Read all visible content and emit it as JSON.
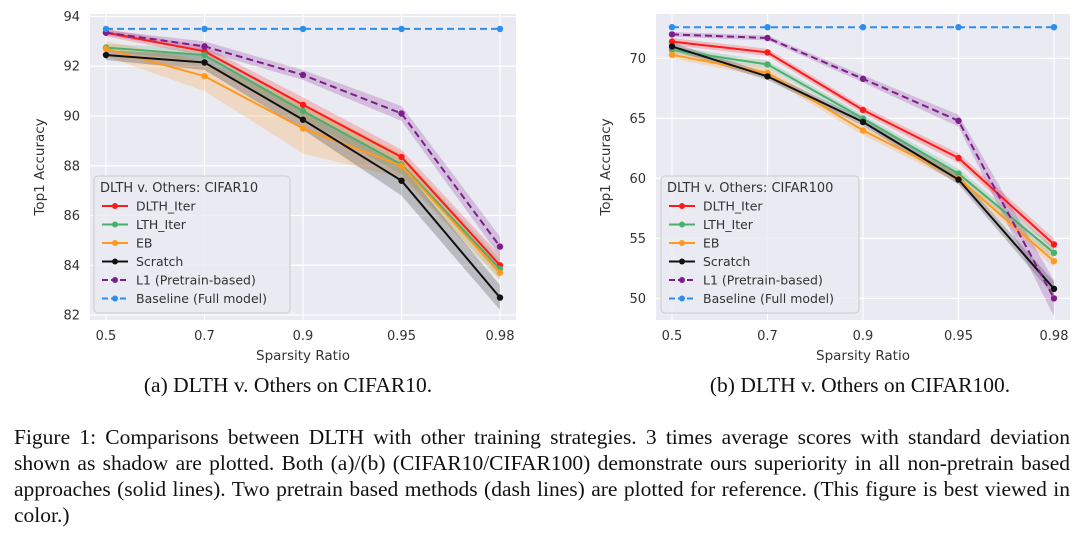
{
  "figure": {
    "caption": "Figure 1: Comparisons between DLTH with other training strategies. 3 times average scores with standard deviation shown as shadow are plotted. Both (a)/(b) (CIFAR10/CIFAR100) demonstrate ours superiority in all non-pretrain based approaches (solid lines). Two pretrain based methods (dash lines) are plotted for reference. (This figure is best viewed in color.)"
  },
  "colors": {
    "DLTH_Iter": "#ff1a1a",
    "LTH_Iter": "#4caf6d",
    "EB": "#ff9a1f",
    "Scratch": "#111111",
    "L1": "#7e1e8c",
    "Baseline": "#2c8ff0",
    "plot_bg": "#eaeaf2",
    "grid": "#ffffff"
  },
  "chart_data": [
    {
      "type": "line",
      "subtitle": "(a) DLTH v. Others on CIFAR10.",
      "xlabel": "Sparsity Ratio",
      "ylabel": "Top1 Accuracy",
      "categories": [
        "0.5",
        "0.7",
        "0.9",
        "0.95",
        "0.98"
      ],
      "ylim": [
        81.8,
        94.1
      ],
      "yticks": [
        82,
        84,
        86,
        88,
        90,
        92,
        94
      ],
      "grid": true,
      "legend": {
        "title": "DLTH v. Others: CIFAR10",
        "position": "lower-left",
        "entries": [
          "DLTH_Iter",
          "LTH_Iter",
          "EB",
          "Scratch",
          "L1 (Pretrain-based)",
          "Baseline (Full model)"
        ]
      },
      "series": [
        {
          "name": "DLTH_Iter",
          "values": [
            93.35,
            92.6,
            90.45,
            88.35,
            84.0
          ],
          "std": [
            0.15,
            0.2,
            0.3,
            0.3,
            0.4
          ],
          "dashed": false
        },
        {
          "name": "LTH_Iter",
          "values": [
            92.75,
            92.45,
            90.2,
            88.05,
            83.85
          ],
          "std": [
            0.15,
            0.25,
            0.3,
            0.4,
            0.4
          ],
          "dashed": false
        },
        {
          "name": "EB",
          "values": [
            92.7,
            91.6,
            89.5,
            88.0,
            83.7
          ],
          "std": [
            0.3,
            0.6,
            1.0,
            0.5,
            0.3
          ],
          "dashed": false
        },
        {
          "name": "Scratch",
          "values": [
            92.45,
            92.15,
            89.85,
            87.4,
            82.7
          ],
          "std": [
            0.2,
            0.3,
            0.4,
            0.6,
            0.5
          ],
          "dashed": false
        },
        {
          "name": "L1 (Pretrain-based)",
          "values": [
            93.35,
            92.8,
            91.65,
            90.1,
            84.75
          ],
          "std": [
            0.1,
            0.2,
            0.2,
            0.3,
            0.4
          ],
          "dashed": true
        },
        {
          "name": "Baseline (Full model)",
          "values": [
            93.5,
            93.5,
            93.5,
            93.5,
            93.5
          ],
          "std": [
            0,
            0,
            0,
            0,
            0
          ],
          "dashed": true
        }
      ]
    },
    {
      "type": "line",
      "subtitle": "(b) DLTH v. Others on CIFAR100.",
      "xlabel": "Sparsity Ratio",
      "ylabel": "Top1 Accuracy",
      "categories": [
        "0.5",
        "0.7",
        "0.9",
        "0.95",
        "0.98"
      ],
      "ylim": [
        48.2,
        73.7
      ],
      "yticks": [
        50,
        55,
        60,
        65,
        70
      ],
      "grid": true,
      "legend": {
        "title": "DLTH v. Others: CIFAR100",
        "position": "lower-left",
        "entries": [
          "DLTH_Iter",
          "LTH_Iter",
          "EB",
          "Scratch",
          "L1 (Pretrain-based)",
          "Baseline (Full model)"
        ]
      },
      "series": [
        {
          "name": "DLTH_Iter",
          "values": [
            71.4,
            70.5,
            65.7,
            61.7,
            54.5
          ],
          "std": [
            0.3,
            0.3,
            0.3,
            0.4,
            0.5
          ],
          "dashed": false
        },
        {
          "name": "LTH_Iter",
          "values": [
            70.7,
            69.5,
            65.0,
            60.4,
            53.8
          ],
          "std": [
            0.3,
            0.3,
            0.3,
            0.4,
            0.5
          ],
          "dashed": false
        },
        {
          "name": "EB",
          "values": [
            70.3,
            68.8,
            64.0,
            60.0,
            53.1
          ],
          "std": [
            0.3,
            0.4,
            0.4,
            0.4,
            0.5
          ],
          "dashed": false
        },
        {
          "name": "Scratch",
          "values": [
            71.0,
            68.5,
            64.7,
            59.9,
            50.8
          ],
          "std": [
            0.3,
            0.3,
            0.3,
            0.4,
            0.6
          ],
          "dashed": false
        },
        {
          "name": "L1 (Pretrain-based)",
          "values": [
            72.0,
            71.7,
            68.3,
            64.8,
            50.0
          ],
          "std": [
            0.2,
            0.2,
            0.3,
            0.5,
            1.5
          ],
          "dashed": true
        },
        {
          "name": "Baseline (Full model)",
          "values": [
            72.6,
            72.6,
            72.6,
            72.6,
            72.6
          ],
          "std": [
            0,
            0,
            0,
            0,
            0
          ],
          "dashed": true
        }
      ]
    }
  ]
}
